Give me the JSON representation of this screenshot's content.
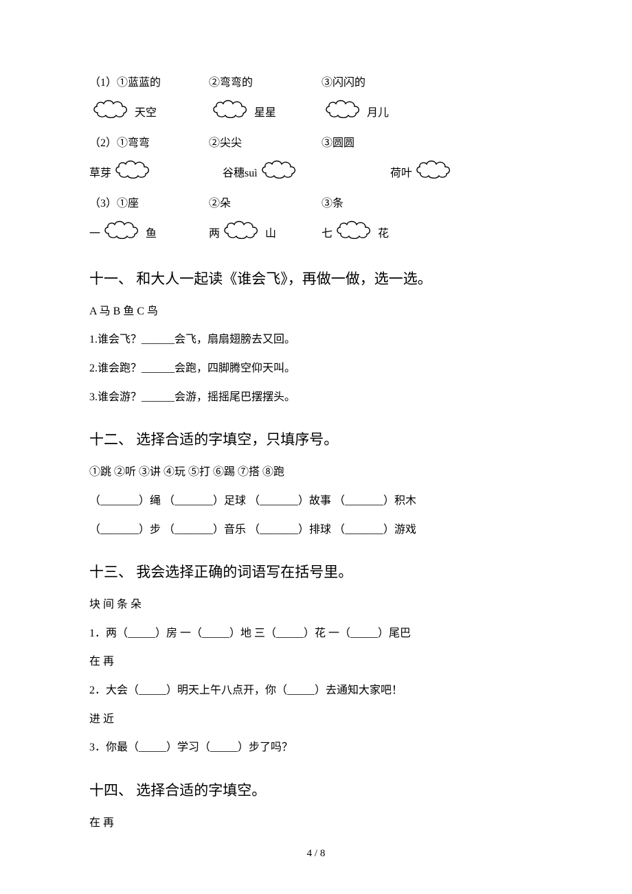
{
  "cloud": {
    "w": 62,
    "h": 30,
    "stroke": "#000000",
    "fill": "none",
    "stroke_width": 1.4
  },
  "q10": {
    "r1_labels": [
      "（1）①蓝蓝的",
      "②弯弯的",
      "③闪闪的"
    ],
    "r1_after": [
      "天空",
      "星星",
      "月儿"
    ],
    "r2_labels": [
      "（2）①弯弯",
      "②尖尖",
      "③圆圆"
    ],
    "r2_before": [
      "草芽",
      "谷穗suì",
      "荷叶"
    ],
    "r3_labels": [
      "（3）①座",
      "②朵",
      "③条"
    ],
    "r3_pre": [
      "一",
      "两",
      "七"
    ],
    "r3_after": [
      "鱼",
      "山",
      "花"
    ]
  },
  "q11": {
    "title": "十一、 和大人一起读《谁会飞》，再做一做，选一选。",
    "opts": " A 马    B 鱼    C 鸟",
    "items": [
      "1.谁会飞？______会飞，扇扇翅膀去又回。",
      "2.谁会跑？______会跑，四脚腾空仰天叫。",
      "3.谁会游？______会游，摇摇尾巴摆摆头。"
    ]
  },
  "q12": {
    "title": "十二、 选择合适的字填空，只填序号。",
    "opts": "①跳    ②听    ③讲    ④玩    ⑤打    ⑥踢    ⑦搭    ⑧跑",
    "row1": " （_______）绳  （_______）足球  （_______）故事  （_______）积木",
    "row2": " （_______）步  （_______）音乐  （_______）排球  （_______）游戏"
  },
  "q13": {
    "title": "十三、 我会选择正确的词语写在括号里。",
    "g1_opts": "块   间   条   朵",
    "g1_line": "1．两（_____）房   一（_____）地   三（_____）花  一（_____）尾巴",
    "g2_opts": "在    再",
    "g2_line": "2．大会（_____）明天上午八点开，你（_____）去通知大家吧！",
    "g3_opts": "进   近",
    "g3_line": "3．你最（_____）学习（_____）步了吗？"
  },
  "q14": {
    "title": "十四、 选择合适的字填空。",
    "opts": "在    再"
  },
  "footer": "4 / 8"
}
